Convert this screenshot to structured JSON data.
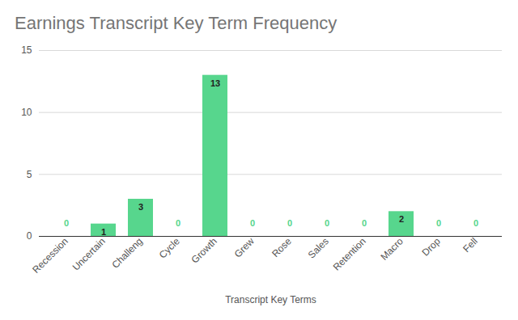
{
  "chart_data": {
    "type": "bar",
    "title": "Earnings Transcript Key Term Frequency",
    "x_label": "Transcript Key Terms",
    "categories": [
      "Recession",
      "Uncertain",
      "Challeng",
      "Cycle",
      "Growth",
      "Grew",
      "Rose",
      "Sales",
      "Retention",
      "Macro",
      "Drop",
      "Fell"
    ],
    "values": [
      0,
      1,
      3,
      0,
      13,
      0,
      0,
      0,
      0,
      2,
      0,
      0
    ],
    "color": "#57d68d",
    "ylim": [
      0,
      15
    ],
    "yticks": [
      0,
      5,
      10,
      15
    ],
    "grid": true,
    "data_labels": true
  }
}
